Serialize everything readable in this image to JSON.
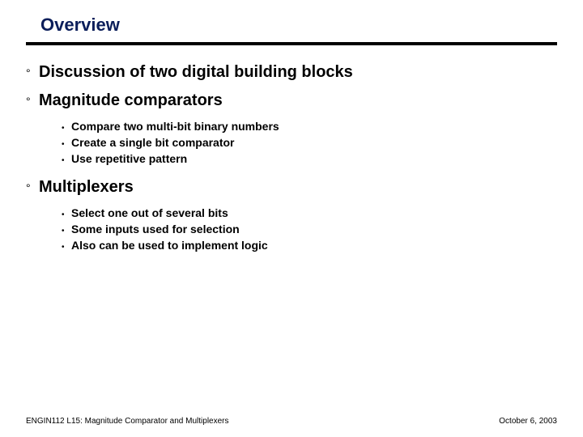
{
  "title": "Overview",
  "bullet_glyph": "°",
  "sub_glyph": "•",
  "items": [
    {
      "text": "Discussion of two digital building blocks",
      "subs": []
    },
    {
      "text": "Magnitude comparators",
      "subs": [
        "Compare two multi-bit binary numbers",
        "Create a single bit comparator",
        "Use repetitive pattern"
      ]
    },
    {
      "text": "Multiplexers",
      "subs": [
        "Select one out of several bits",
        "Some inputs used for selection",
        "Also can be used to implement logic"
      ]
    }
  ],
  "footer_left": "ENGIN112 L15: Magnitude Comparator and Multiplexers",
  "footer_right": "October 6, 2003",
  "colors": {
    "title": "#0b1e5a",
    "rule": "#000000",
    "text": "#000000",
    "background": "#ffffff"
  }
}
